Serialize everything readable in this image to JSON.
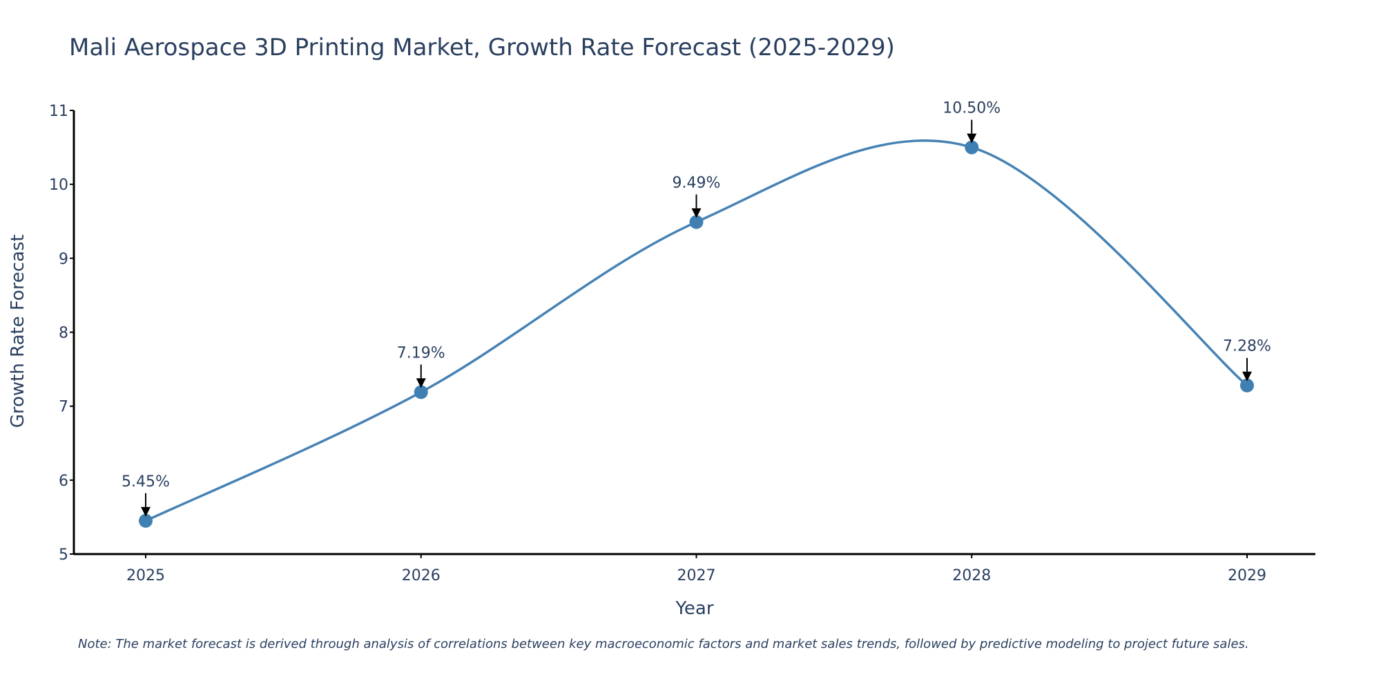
{
  "chart_data": {
    "type": "line",
    "title": "Mali Aerospace 3D Printing Market, Growth Rate Forecast (2025-2029)",
    "xlabel": "Year",
    "ylabel": "Growth Rate Forecast",
    "categories": [
      "2025",
      "2026",
      "2027",
      "2028",
      "2029"
    ],
    "values": [
      5.45,
      7.19,
      9.49,
      10.5,
      7.28
    ],
    "data_labels": [
      "5.45%",
      "7.19%",
      "9.49%",
      "10.50%",
      "7.28%"
    ],
    "ylim": [
      5,
      11
    ],
    "yticks": [
      "5",
      "6",
      "7",
      "8",
      "9",
      "10",
      "11"
    ],
    "ytick_values": [
      5,
      6,
      7,
      8,
      9,
      10,
      11
    ],
    "grid": false,
    "line_shape": "spline",
    "line_color": "#4682b4",
    "marker_color": "#3f7fb1",
    "arrow_color": "#000000",
    "text_color": "#2a3f5f"
  },
  "note": "Note: The market forecast is derived through analysis of correlations between key macroeconomic factors and market sales trends, followed by predictive modeling to project future sales."
}
